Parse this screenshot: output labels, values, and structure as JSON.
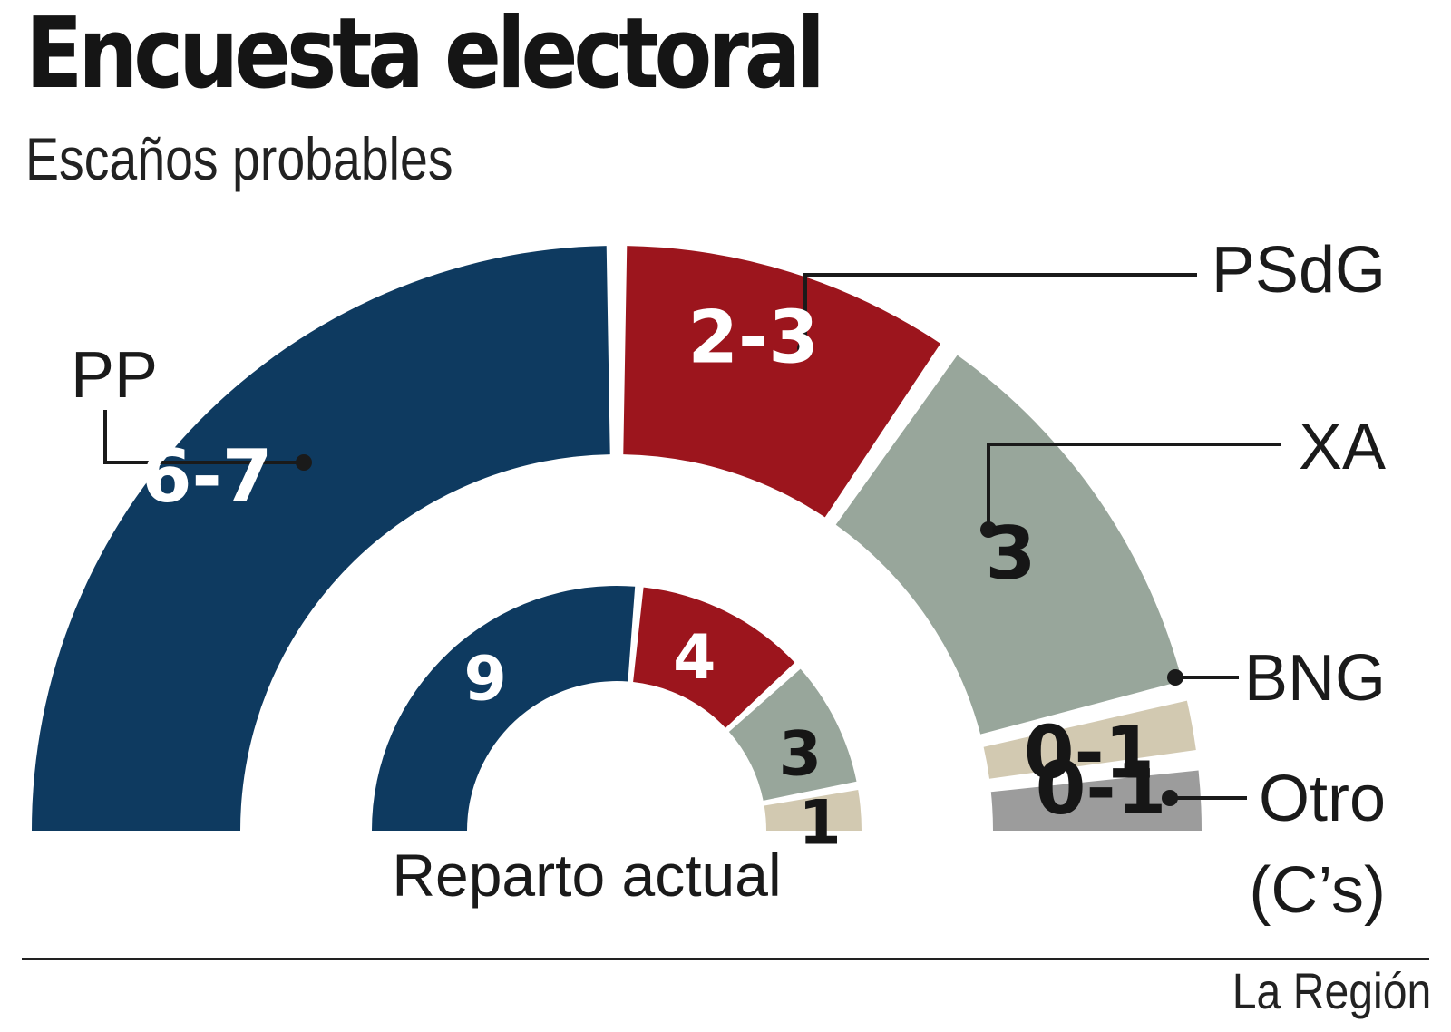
{
  "header": {
    "title": "Encuesta electoral",
    "subtitle": "Escaños probables"
  },
  "chart_data": {
    "type": "pie",
    "variant": "concentric-semicircle",
    "outer_ring": {
      "series_name": "",
      "slices": [
        {
          "party": "PP",
          "label": "6-7",
          "value": 6.5,
          "color": "#0e3a60",
          "text_color": "#ffffff"
        },
        {
          "party": "PSdG",
          "label": "2-3",
          "value": 2.5,
          "color": "#9c151d",
          "text_color": "#ffffff"
        },
        {
          "party": "XA",
          "label": "3",
          "value": 3,
          "color": "#98a69b",
          "text_color": "#161616"
        },
        {
          "party": "BNG",
          "label": "0-1",
          "value": 0.5,
          "color": "#d2c9b1",
          "text_color": "#161616"
        },
        {
          "party": "Otro",
          "label": "0-1",
          "value": 0.5,
          "color": "#9c9c9c",
          "text_color": "#161616"
        }
      ]
    },
    "inner_ring": {
      "caption": "Reparto actual",
      "slices": [
        {
          "party": "PP",
          "label": "9",
          "value": 9,
          "color": "#0e3a60",
          "text_color": "#ffffff"
        },
        {
          "party": "PSdG",
          "label": "4",
          "value": 4,
          "color": "#9c151d",
          "text_color": "#ffffff"
        },
        {
          "party": "XA",
          "label": "3",
          "value": 3,
          "color": "#98a69b",
          "text_color": "#161616"
        },
        {
          "party": "BNG",
          "label": "1",
          "value": 1,
          "color": "#d2c9b1",
          "text_color": "#161616"
        }
      ]
    },
    "party_labels": {
      "PP": "PP",
      "PSdG": "PSdG",
      "XA": "XA",
      "BNG": "BNG",
      "Otro": "Otro",
      "Otro_sub": "(C’s)"
    },
    "legend": "callout-lines"
  },
  "footer": {
    "source": "La Región"
  }
}
